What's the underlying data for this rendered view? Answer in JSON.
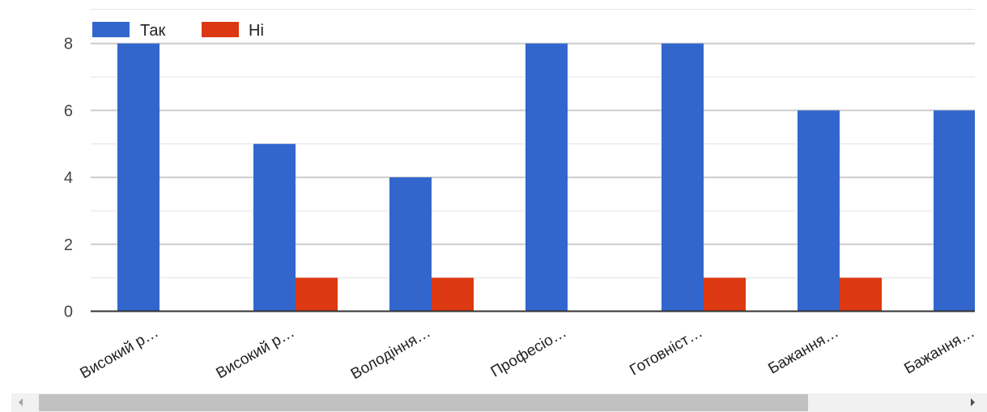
{
  "chart_data": {
    "type": "bar",
    "categories": [
      "Високий р…",
      "Високий р…",
      "Володіння…",
      "Професіо…",
      "Готовніст…",
      "Бажання…",
      "Бажання…"
    ],
    "series": [
      {
        "name": "Так",
        "color": "#3366cc",
        "values": [
          8,
          5,
          4,
          8,
          8,
          6,
          6
        ]
      },
      {
        "name": "Ні",
        "color": "#dc3912",
        "values": [
          0,
          1,
          1,
          0,
          1,
          1,
          0
        ]
      }
    ],
    "yticks": [
      0,
      2,
      4,
      6,
      8
    ],
    "ylim": [
      0,
      8
    ],
    "grid": true,
    "legend": "top-left",
    "title": "",
    "xlabel": "",
    "ylabel": ""
  }
}
